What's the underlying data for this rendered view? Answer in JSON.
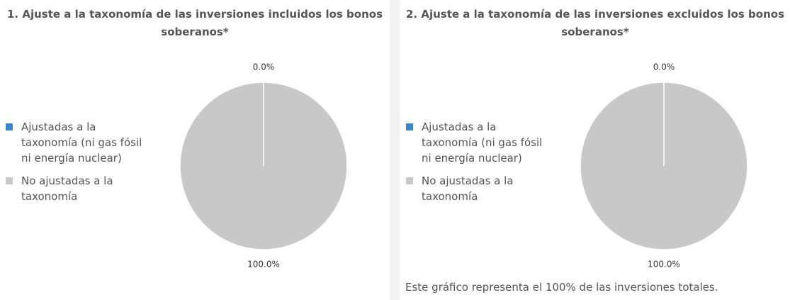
{
  "chart_data": [
    {
      "type": "pie",
      "title": "1. Ajuste a la taxonomía de las inversiones incluidos los bonos soberanos*",
      "categories": [
        "Ajustadas a la taxonomía (ni gas fósil ni energía nuclear)",
        "No ajustadas a la taxonomía"
      ],
      "values": [
        0,
        100
      ],
      "value_labels": [
        "0.0%",
        "100.0%"
      ],
      "colors": [
        "#3a87c8",
        "#c8c8c8"
      ],
      "legend": "left"
    },
    {
      "type": "pie",
      "title": "2. Ajuste a la taxonomía de las inversiones excluidos los bonos soberanos*",
      "categories": [
        "Ajustadas a la taxonomía (ni gas fósil ni energía nuclear)",
        "No ajustadas a la taxonomía"
      ],
      "values": [
        0,
        100
      ],
      "value_labels": [
        "0.0%",
        "100.0%"
      ],
      "colors": [
        "#3a87c8",
        "#c8c8c8"
      ],
      "legend": "left",
      "annotation": "Este gráfico representa el 100% de las inversiones totales."
    }
  ]
}
